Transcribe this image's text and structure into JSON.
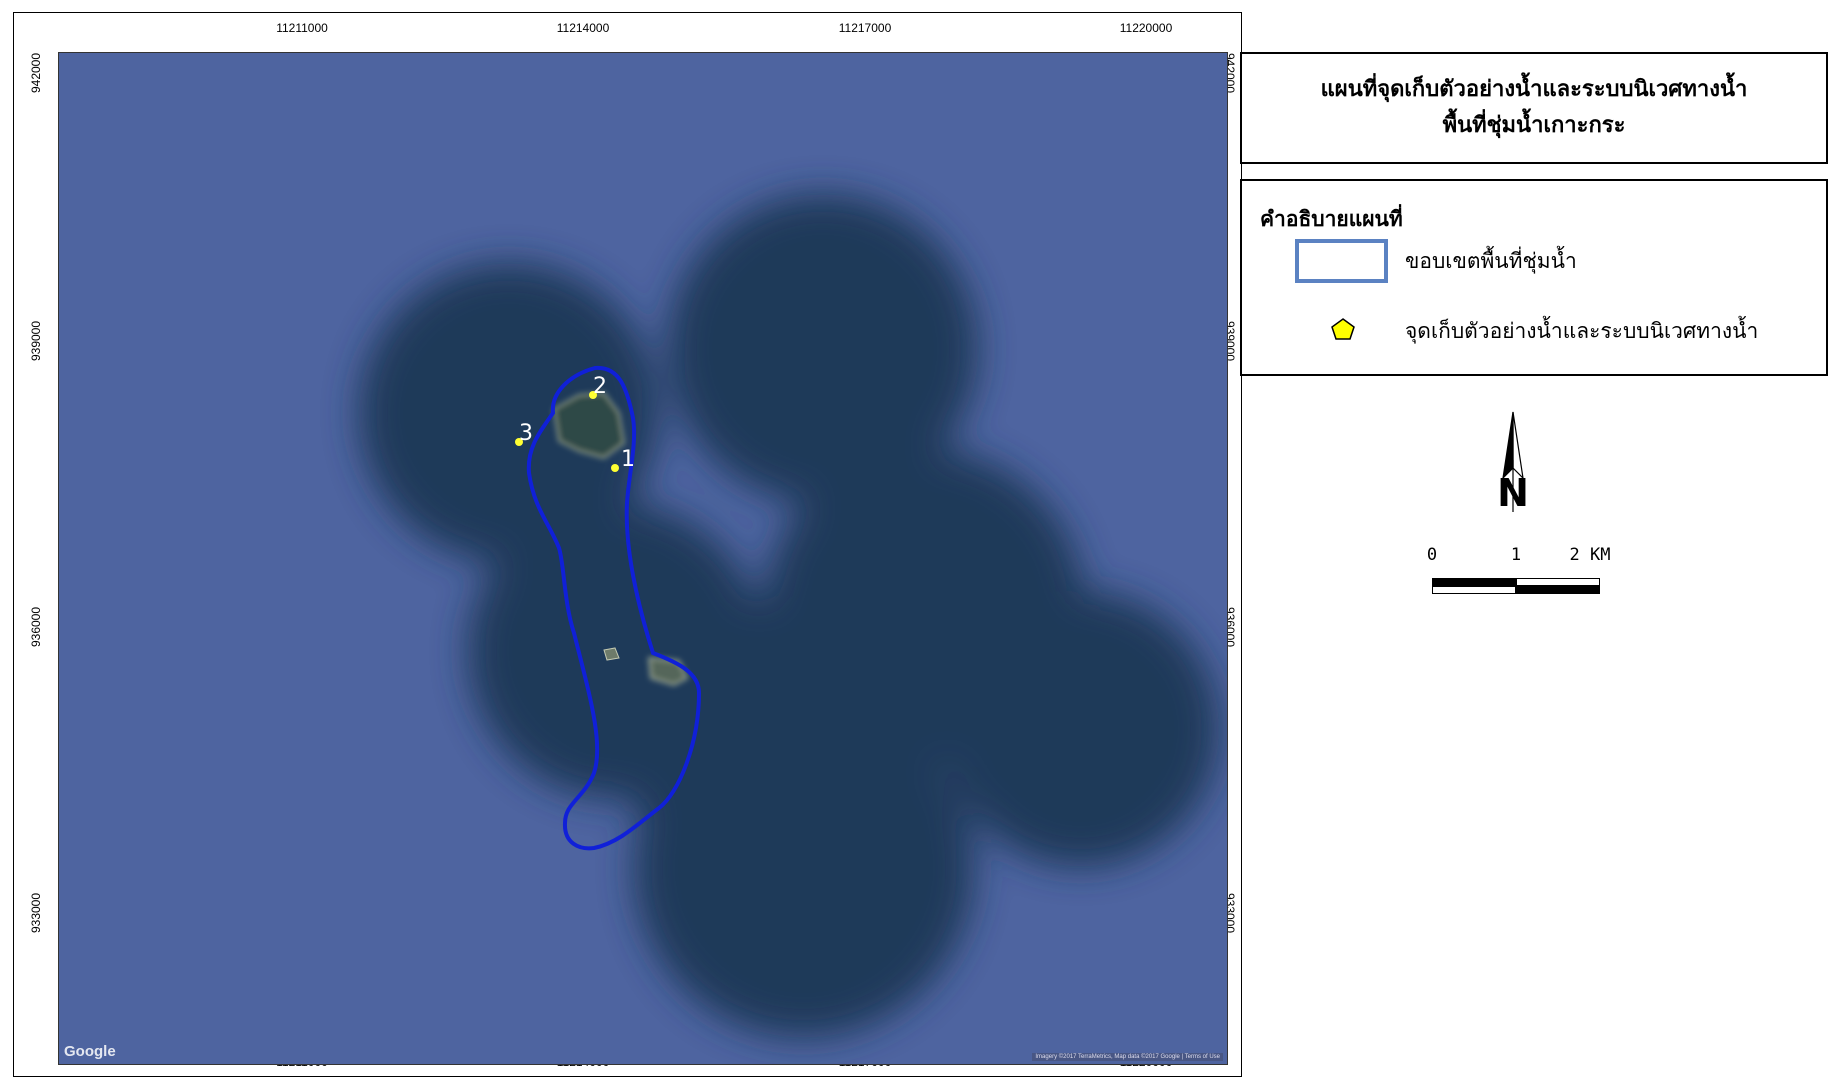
{
  "map": {
    "title_line1": "แผนที่จุดเก็บตัวอย่างน้ำและระบบนิเวศทางน้ำ",
    "title_line2": "พื้นที่ชุ่มน้ำเกาะกระ",
    "x_ticks": [
      "11211000",
      "11214000",
      "11217000",
      "11220000"
    ],
    "y_ticks": [
      "942000",
      "939000",
      "936000",
      "933000"
    ],
    "basemap_logo": "Google",
    "attribution": "Imagery ©2017 TerraMetrics, Map data ©2017 Google | Terms of Use",
    "water_color": "#4e64a0",
    "boundary_color": "#1020d8"
  },
  "points": [
    {
      "label": "1"
    },
    {
      "label": "2"
    },
    {
      "label": "3"
    }
  ],
  "legend": {
    "heading": "คำอธิบายแผนที่",
    "boundary_label": "ขอบเขตพื้นที่ชุ่มน้ำ",
    "sample_label": "จุดเก็บตัวอย่างน้ำและระบบนิเวศทางน้ำ",
    "boundary_color": "#5b82c2",
    "sample_color": "#ffff00"
  },
  "north_arrow": {
    "label": "N",
    "icon": "north-arrow-icon"
  },
  "scale_bar": {
    "labels": [
      "0",
      "1",
      "2 KM"
    ]
  }
}
